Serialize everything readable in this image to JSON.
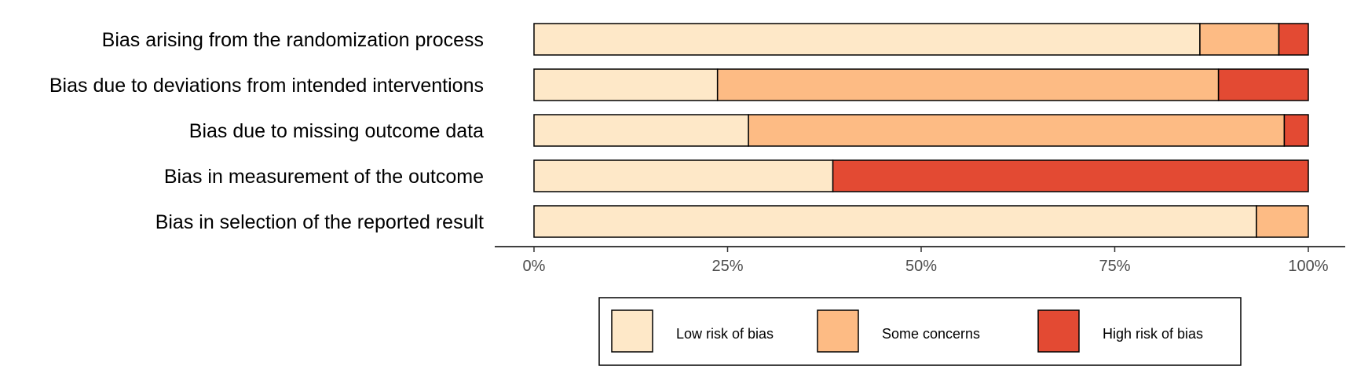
{
  "chart_data": {
    "type": "bar",
    "orientation": "horizontal",
    "stacked": true,
    "categories": [
      "Bias arising from the randomization process",
      "Bias due to deviations from intended interventions",
      "Bias due to missing outcome data",
      "Bias in measurement of the outcome",
      "Bias in selection of the reported result"
    ],
    "series": [
      {
        "name": "Low risk of bias",
        "color": "#fee8c8",
        "values": [
          86.0,
          23.7,
          27.7,
          38.6,
          93.3
        ]
      },
      {
        "name": "Some concerns",
        "color": "#fdbb84",
        "values": [
          10.2,
          64.7,
          69.2,
          0.0,
          6.7
        ]
      },
      {
        "name": "High risk of bias",
        "color": "#e34a33",
        "values": [
          3.8,
          11.6,
          3.1,
          61.4,
          0.0
        ]
      }
    ],
    "x_ticks": [
      "0%",
      "25%",
      "50%",
      "75%",
      "100%"
    ],
    "xlim": [
      0,
      100
    ],
    "title": "",
    "xlabel": "",
    "ylabel": "",
    "grid": false,
    "legend_position": "bottom"
  }
}
